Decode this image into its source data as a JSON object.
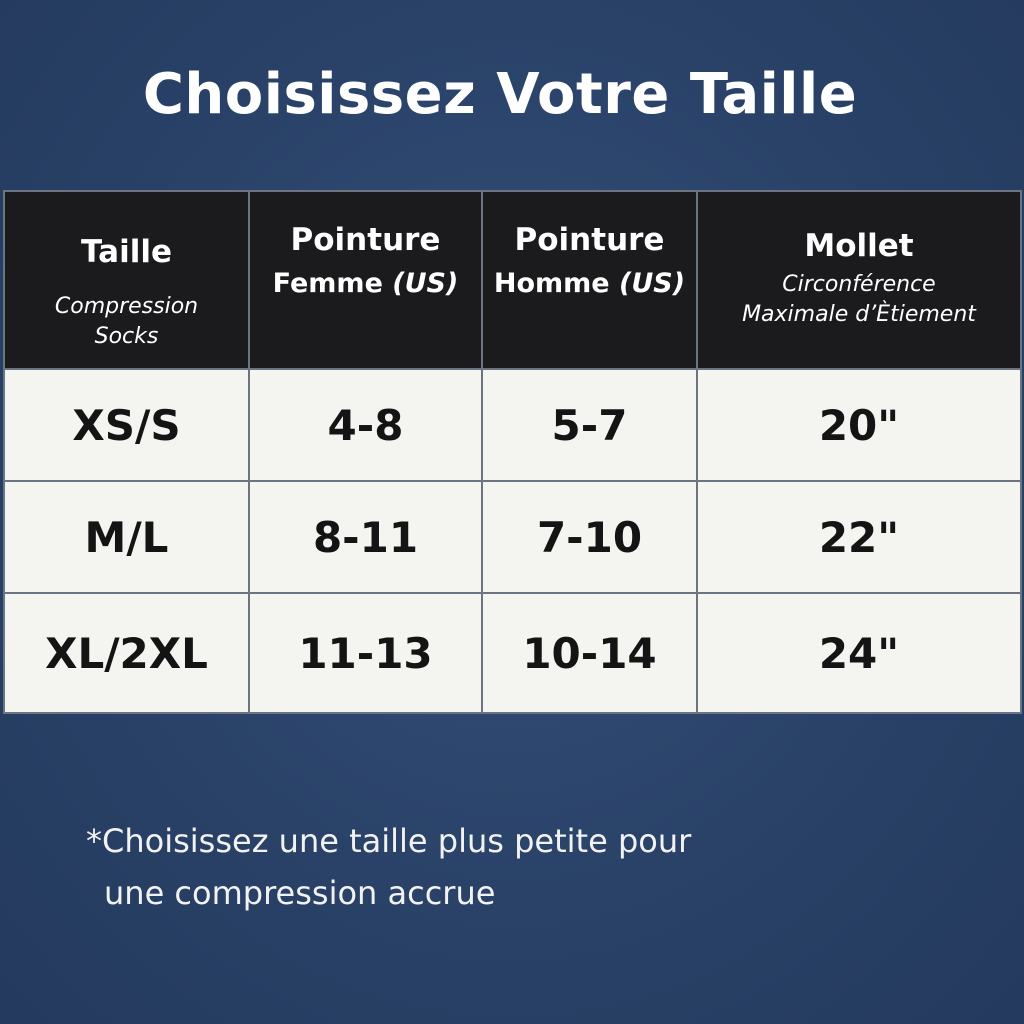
{
  "title": "Choisissez Votre Taille",
  "table": {
    "headers": [
      {
        "main": "Taille",
        "sub": [
          "Compression",
          "Socks"
        ]
      },
      {
        "main": "Pointure",
        "line2": "Femme",
        "unit": "(US)"
      },
      {
        "main": "Pointure",
        "line2": "Homme",
        "unit": "(US)"
      },
      {
        "main": "Mollet",
        "sub": [
          "Circonférence",
          "Maximale d’Ètiement"
        ]
      }
    ],
    "rows": [
      [
        "XS/S",
        "4-8",
        "5-7",
        "20\""
      ],
      [
        "M/L",
        "8-11",
        "7-10",
        "22\""
      ],
      [
        "XL/2XL",
        "11-13",
        "10-14",
        "24\""
      ]
    ]
  },
  "note": [
    "*Choisissez une taille plus petite pour",
    "une compression accrue"
  ],
  "colors": {
    "background": "#2a4268",
    "header": "#1b1b1d",
    "cell": "#f4f4f1"
  }
}
